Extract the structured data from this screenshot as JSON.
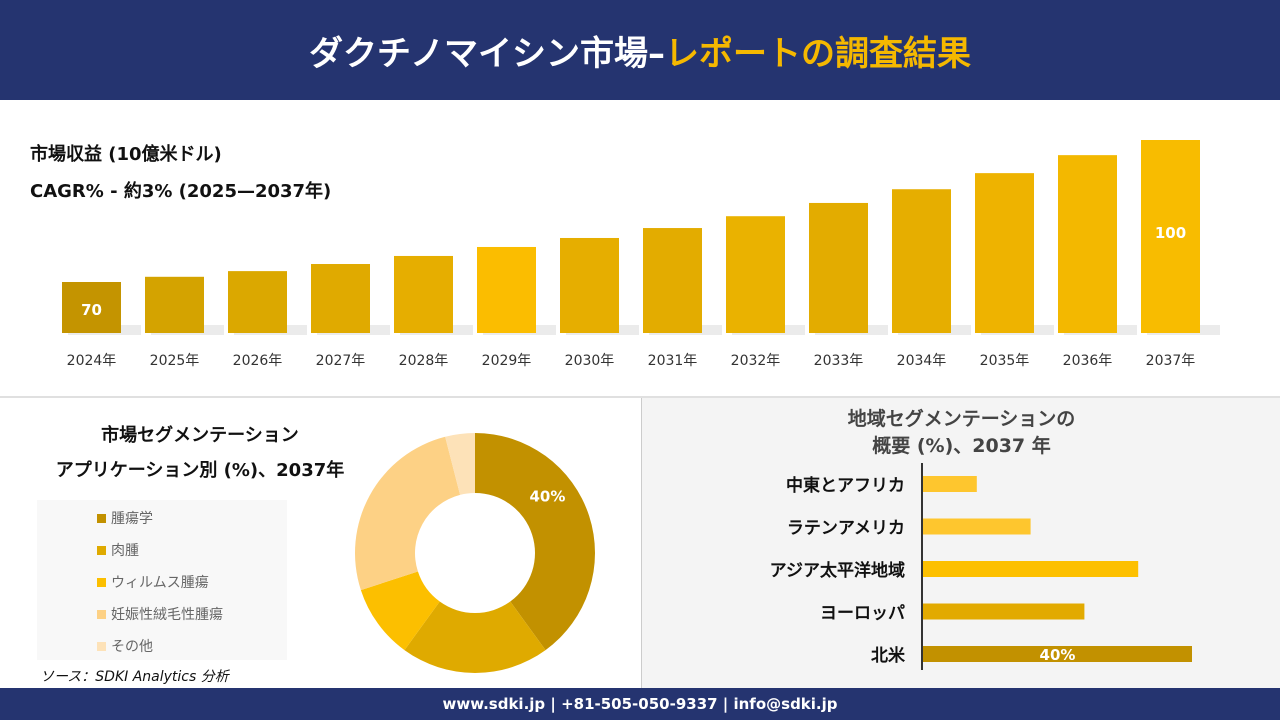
{
  "header": {
    "title_main": "ダクチノマイシン市場–",
    "title_accent": "レポートの調査結果"
  },
  "colors": {
    "navy": "#253470",
    "gold": "#f5b800"
  },
  "chart_data": [
    {
      "type": "bar",
      "title": "市場収益 (10億米ドル)",
      "subtitle": "CAGR% - 約3% (2025—2037年)",
      "categories": [
        "2024年",
        "2025年",
        "2026年",
        "2027年",
        "2028年",
        "2029年",
        "2030年",
        "2031年",
        "2032年",
        "2033年",
        "2034年",
        "2035年",
        "2036年",
        "2037年"
      ],
      "values": [
        70,
        71.1,
        72.3,
        73.8,
        75.5,
        77.4,
        79.3,
        81.4,
        83.9,
        86.7,
        89.6,
        93,
        96.8,
        100
      ],
      "data_labels": {
        "0": "70",
        "13": "100"
      },
      "colors": [
        "#c49400",
        "#d4a300",
        "#dba800",
        "#e0aa00",
        "#e6ae00",
        "#fbbd00",
        "#e6ae00",
        "#e3ac00",
        "#eab200",
        "#e3ac00",
        "#e6ae00",
        "#eeb300",
        "#f3b800",
        "#f8bc00"
      ],
      "grid": false
    },
    {
      "type": "pie",
      "title_line1": "市場セグメンテーション",
      "title_line2": "アプリケーション別 (%)、2037年",
      "labels": [
        "腫瘍学",
        "肉腫",
        "ウィルムス腫瘍",
        "妊娠性絨毛性腫瘍",
        "その他"
      ],
      "values": [
        40,
        20,
        10,
        26,
        4
      ],
      "data_labels": {
        "0": "40%"
      },
      "colors": [
        "#c29100",
        "#dfaa00",
        "#fcbf00",
        "#fdd185",
        "#fde2b8"
      ],
      "legend": "left",
      "source": "ソース：SDKI Analytics 分析"
    },
    {
      "type": "bar",
      "orientation": "horizontal",
      "title_line1": "地域セグメンテーションの",
      "title_line2": "概要 (%)、2037 年",
      "categories": [
        "中東とアフリカ",
        "ラテンアメリカ",
        "アジア太平洋地域",
        "ヨーロッパ",
        "北米"
      ],
      "values": [
        8,
        16,
        32,
        24,
        40
      ],
      "data_labels": {
        "4": "40%"
      },
      "colors": [
        "#fec62e",
        "#fec62e",
        "#fdc000",
        "#e2aa00",
        "#c29100"
      ]
    }
  ],
  "footer": {
    "contact": "www.sdki.jp | +81-505-050-9337 | info@sdki.jp"
  }
}
